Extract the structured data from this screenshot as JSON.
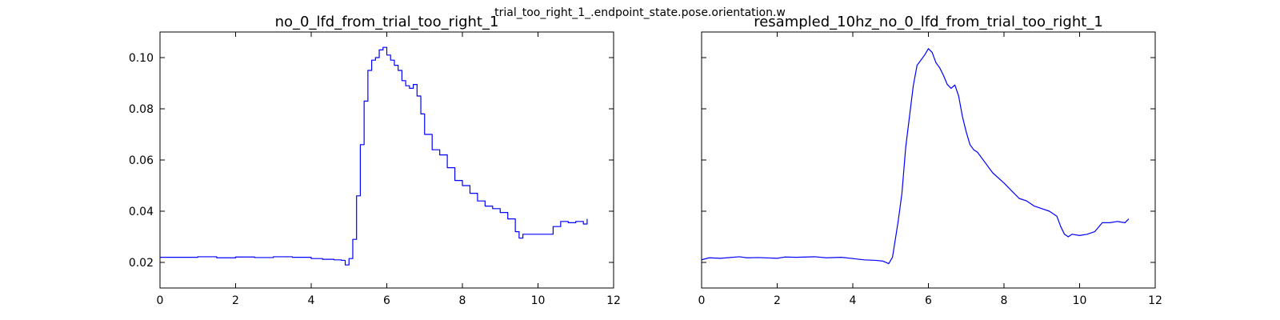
{
  "figure": {
    "suptitle": "trial_too_right_1_.endpoint_state.pose.orientation.w"
  },
  "chart_data": [
    {
      "type": "line",
      "title": "no_0_lfd_from_trial_too_right_1",
      "xlabel": "",
      "ylabel": "",
      "xlim": [
        0,
        12
      ],
      "ylim": [
        0.01,
        0.11
      ],
      "xticks": [
        0,
        2,
        4,
        6,
        8,
        10,
        12
      ],
      "xtick_labels": [
        "0",
        "2",
        "4",
        "6",
        "8",
        "10",
        "12"
      ],
      "yticks": [
        0.02,
        0.04,
        0.06,
        0.08,
        0.1
      ],
      "ytick_labels": [
        "0.02",
        "0.04",
        "0.06",
        "0.08",
        "0.10"
      ],
      "grid": false,
      "series": [
        {
          "name": "no_0_lfd_from_trial_too_right_1",
          "color": "#0000ff",
          "style": "step",
          "x": [
            0.0,
            0.5,
            1.0,
            1.5,
            2.0,
            2.5,
            3.0,
            3.5,
            4.0,
            4.3,
            4.6,
            4.8,
            4.9,
            5.0,
            5.1,
            5.2,
            5.3,
            5.4,
            5.5,
            5.6,
            5.7,
            5.8,
            5.9,
            6.0,
            6.1,
            6.2,
            6.3,
            6.4,
            6.5,
            6.6,
            6.7,
            6.8,
            6.9,
            7.0,
            7.2,
            7.4,
            7.6,
            7.8,
            8.0,
            8.2,
            8.4,
            8.6,
            8.8,
            9.0,
            9.2,
            9.4,
            9.5,
            9.6,
            9.8,
            10.0,
            10.2,
            10.4,
            10.6,
            10.8,
            11.0,
            11.2,
            11.3
          ],
          "y": [
            0.022,
            0.022,
            0.0222,
            0.0218,
            0.0221,
            0.0219,
            0.0222,
            0.022,
            0.0215,
            0.0212,
            0.021,
            0.0208,
            0.019,
            0.0215,
            0.029,
            0.046,
            0.066,
            0.083,
            0.095,
            0.099,
            0.1,
            0.103,
            0.104,
            0.101,
            0.099,
            0.097,
            0.095,
            0.091,
            0.089,
            0.088,
            0.0895,
            0.085,
            0.078,
            0.07,
            0.064,
            0.062,
            0.057,
            0.052,
            0.05,
            0.047,
            0.044,
            0.042,
            0.041,
            0.0395,
            0.037,
            0.032,
            0.0295,
            0.031,
            0.031,
            0.031,
            0.031,
            0.034,
            0.036,
            0.0355,
            0.036,
            0.035,
            0.037
          ]
        }
      ]
    },
    {
      "type": "line",
      "title": "resampled_10hz_no_0_lfd_from_trial_too_right_1",
      "xlabel": "",
      "ylabel": "",
      "xlim": [
        0,
        12
      ],
      "ylim": [
        0.01,
        0.11
      ],
      "xticks": [
        0,
        2,
        4,
        6,
        8,
        10,
        12
      ],
      "xtick_labels": [
        "0",
        "2",
        "4",
        "6",
        "8",
        "10",
        "12"
      ],
      "yticks": [
        0.02,
        0.04,
        0.06,
        0.08,
        0.1
      ],
      "ytick_labels": [],
      "grid": false,
      "series": [
        {
          "name": "resampled_10hz_no_0_lfd_from_trial_too_right_1",
          "color": "#0000ff",
          "style": "line",
          "x": [
            0.0,
            0.2,
            0.5,
            1.0,
            1.2,
            1.5,
            2.0,
            2.2,
            2.5,
            3.0,
            3.3,
            3.7,
            4.0,
            4.3,
            4.6,
            4.8,
            4.95,
            5.05,
            5.2,
            5.3,
            5.4,
            5.5,
            5.6,
            5.7,
            5.9,
            6.0,
            6.1,
            6.2,
            6.3,
            6.4,
            6.5,
            6.6,
            6.7,
            6.8,
            6.9,
            7.0,
            7.1,
            7.2,
            7.3,
            7.5,
            7.7,
            8.0,
            8.2,
            8.4,
            8.6,
            8.8,
            9.0,
            9.2,
            9.4,
            9.5,
            9.6,
            9.7,
            9.8,
            10.0,
            10.2,
            10.4,
            10.6,
            10.8,
            11.0,
            11.2,
            11.3
          ],
          "y": [
            0.021,
            0.0218,
            0.0216,
            0.0222,
            0.0218,
            0.0219,
            0.0216,
            0.0221,
            0.022,
            0.0222,
            0.0218,
            0.022,
            0.0215,
            0.021,
            0.0208,
            0.0205,
            0.0195,
            0.022,
            0.036,
            0.047,
            0.065,
            0.077,
            0.089,
            0.097,
            0.101,
            0.1035,
            0.102,
            0.098,
            0.096,
            0.093,
            0.0895,
            0.088,
            0.0893,
            0.085,
            0.077,
            0.071,
            0.066,
            0.064,
            0.063,
            0.059,
            0.055,
            0.051,
            0.048,
            0.045,
            0.044,
            0.042,
            0.041,
            0.04,
            0.038,
            0.034,
            0.031,
            0.03,
            0.031,
            0.0305,
            0.031,
            0.032,
            0.0355,
            0.0355,
            0.036,
            0.0355,
            0.037
          ]
        }
      ]
    }
  ]
}
